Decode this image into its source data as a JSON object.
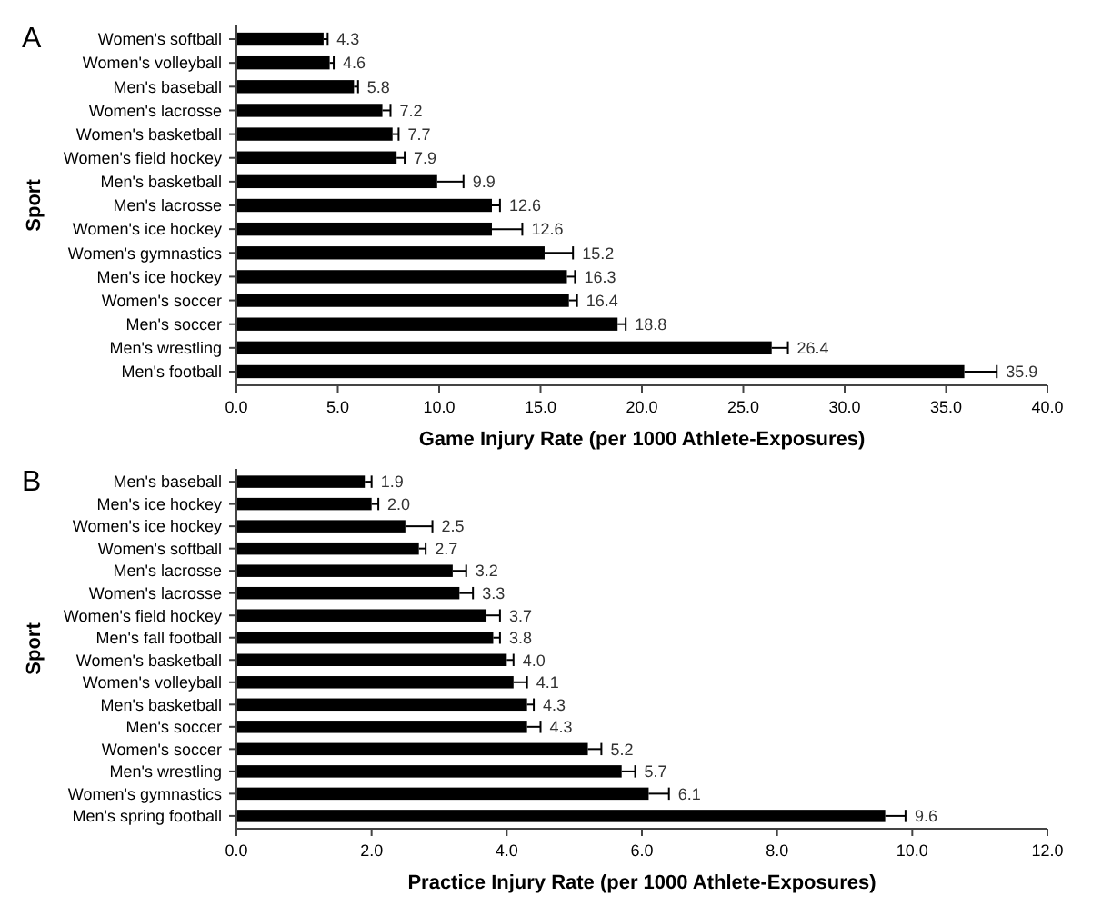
{
  "chart_data": [
    {
      "type": "bar",
      "orientation": "horizontal",
      "title": "A",
      "ylabel": "Sport",
      "xlabel": "Game Injury Rate (per 1000 Athlete-Exposures)",
      "color": "#000000",
      "data_labels": true,
      "categories": [
        "Women's softball",
        "Women's volleyball",
        "Men's baseball",
        "Women's lacrosse",
        "Women's basketball",
        "Women's field hockey",
        "Men's basketball",
        "Men's lacrosse",
        "Women's ice hockey",
        "Women's gymnastics",
        "Men's ice hockey",
        "Women's soccer",
        "Men's soccer",
        "Men's wrestling",
        "Men's football"
      ],
      "values": [
        4.3,
        4.6,
        5.8,
        7.2,
        7.7,
        7.9,
        9.9,
        12.6,
        12.6,
        15.2,
        16.3,
        16.4,
        18.8,
        26.4,
        35.9
      ],
      "errors": [
        [
          4.3,
          4.5
        ],
        [
          4.6,
          4.8
        ],
        [
          5.8,
          6.0
        ],
        [
          7.2,
          7.6
        ],
        [
          7.7,
          8.0
        ],
        [
          7.9,
          8.3
        ],
        [
          9.9,
          11.2
        ],
        [
          12.6,
          13.0
        ],
        [
          12.6,
          14.1
        ],
        [
          15.2,
          16.6
        ],
        [
          16.3,
          16.7
        ],
        [
          16.4,
          16.8
        ],
        [
          18.8,
          19.2
        ],
        [
          26.4,
          27.2
        ],
        [
          35.9,
          37.5
        ]
      ],
      "xlim": [
        0,
        40
      ],
      "xticks": [
        {
          "value": 0,
          "label": "0.0"
        },
        {
          "value": 5,
          "label": "5.0"
        },
        {
          "value": 10,
          "label": "10.0"
        },
        {
          "value": 15,
          "label": "15.0"
        },
        {
          "value": 20,
          "label": "20.0"
        },
        {
          "value": 25,
          "label": "25.0"
        },
        {
          "value": 30,
          "label": "30.0"
        },
        {
          "value": 35,
          "label": "35.0"
        },
        {
          "value": 40,
          "label": "40.0"
        }
      ]
    },
    {
      "type": "bar",
      "orientation": "horizontal",
      "title": "B",
      "ylabel": "Sport",
      "xlabel": "Practice Injury Rate (per 1000 Athlete-Exposures)",
      "color": "#000000",
      "value_labels": [
        "1.9",
        "2.0",
        "2.5",
        "2.7",
        "3.2",
        "3.3",
        "3.7",
        "3.8",
        "4.0",
        "4.1",
        "4.3",
        "4.3",
        "5.2",
        "5.7",
        "6.1",
        "9.6"
      ],
      "categories": [
        "Men's baseball",
        "Men's ice hockey",
        "Women's ice hockey",
        "Women's softball",
        "Men's lacrosse",
        "Women's lacrosse",
        "Women's field hockey",
        "Men's fall football",
        "Women's basketball",
        "Women's volleyball",
        "Men's basketball",
        "Men's soccer",
        "Women's soccer",
        "Men's wrestling",
        "Women's gymnastics",
        "Men's spring football"
      ],
      "values": [
        1.9,
        2.0,
        2.5,
        2.7,
        3.2,
        3.3,
        3.7,
        3.8,
        4.0,
        4.1,
        4.3,
        4.3,
        5.2,
        5.7,
        6.1,
        9.6
      ],
      "errors": [
        [
          1.9,
          2.0
        ],
        [
          2.0,
          2.1
        ],
        [
          2.5,
          2.9
        ],
        [
          2.7,
          2.8
        ],
        [
          3.2,
          3.4
        ],
        [
          3.3,
          3.5
        ],
        [
          3.7,
          3.9
        ],
        [
          3.8,
          3.9
        ],
        [
          4.0,
          4.1
        ],
        [
          4.1,
          4.3
        ],
        [
          4.3,
          4.4
        ],
        [
          4.3,
          4.5
        ],
        [
          5.2,
          5.4
        ],
        [
          5.7,
          5.9
        ],
        [
          6.1,
          6.4
        ],
        [
          9.6,
          9.9
        ]
      ],
      "xlim": [
        0,
        12
      ],
      "xticks": [
        {
          "value": 0,
          "label": "0.0"
        },
        {
          "value": 2,
          "label": "2.0"
        },
        {
          "value": 4,
          "label": "4.0"
        },
        {
          "value": 6,
          "label": "6.0"
        },
        {
          "value": 8,
          "label": "8.0"
        },
        {
          "value": 10,
          "label": "10.0"
        },
        {
          "value": 12,
          "label": "12.0"
        }
      ]
    }
  ]
}
